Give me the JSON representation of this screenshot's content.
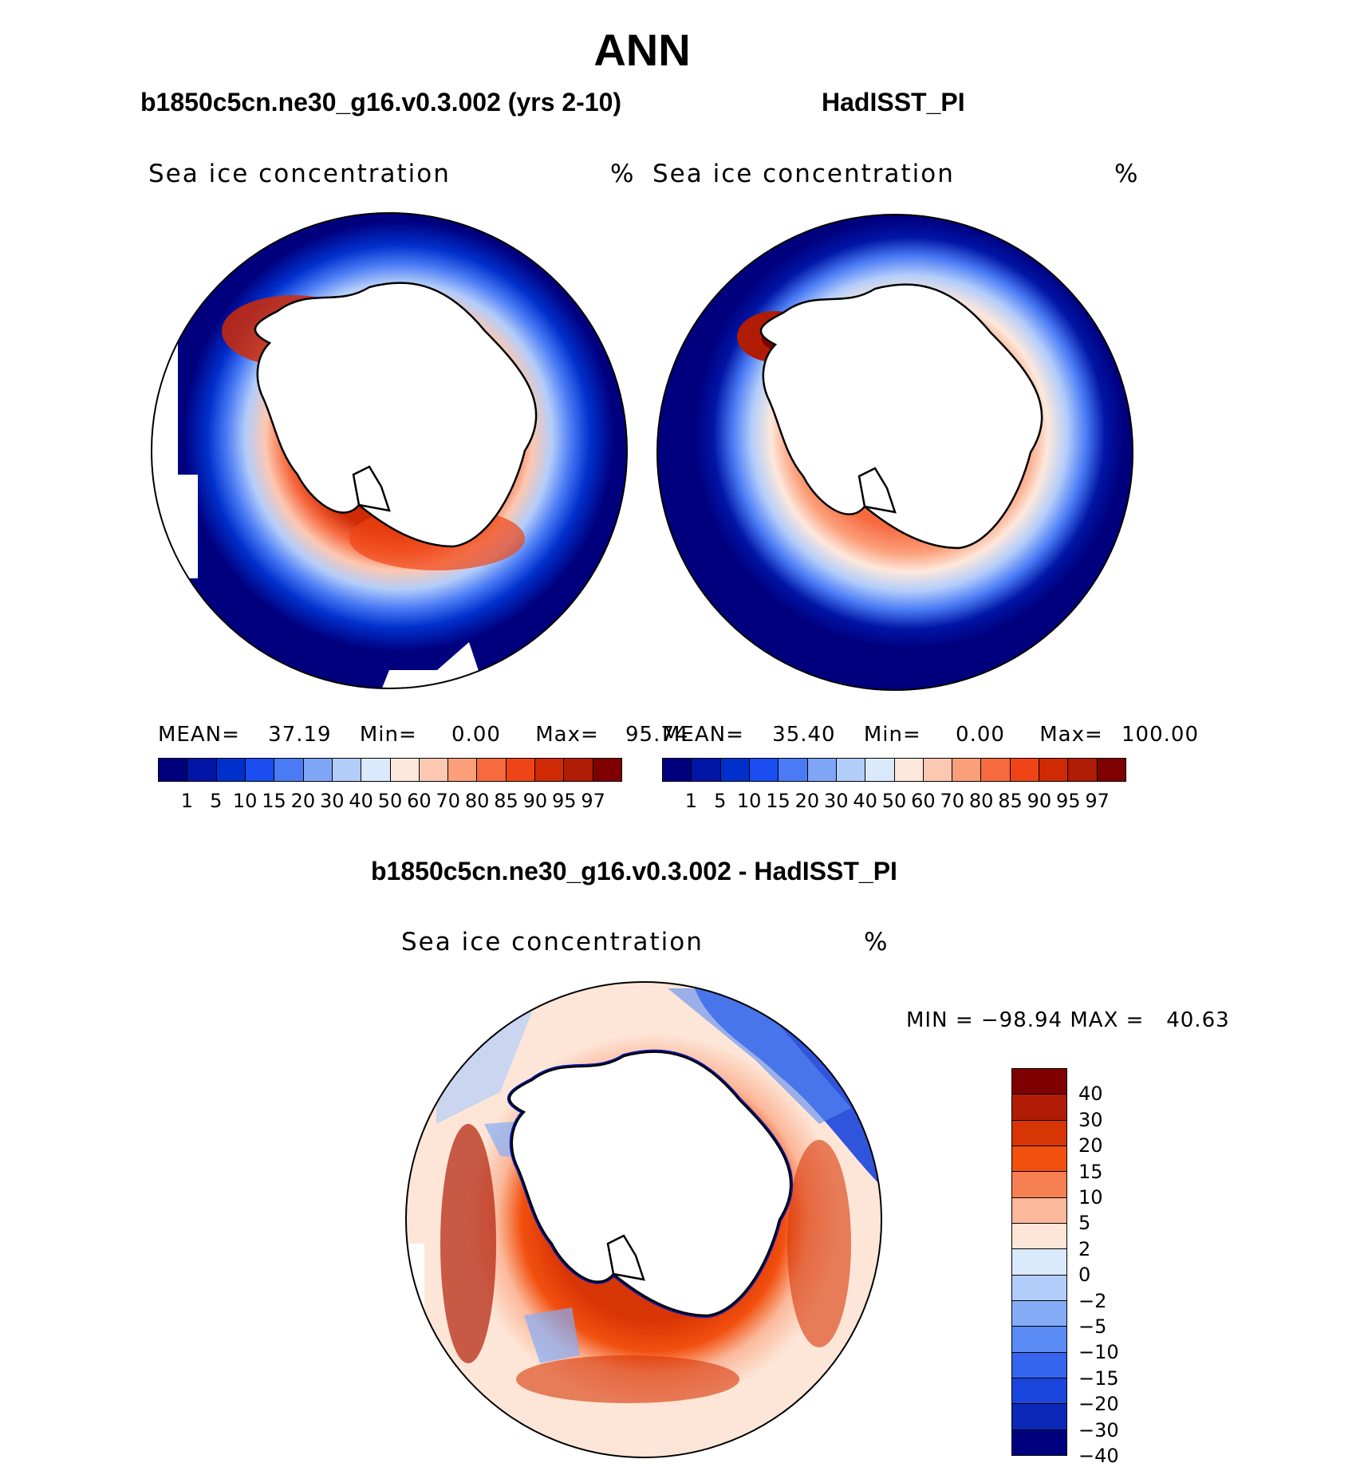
{
  "main_title": "ANN",
  "panels": [
    {
      "title": "b1850c5cn.ne30_g16.v0.3.002 (yrs 2-10)",
      "left_label": "Sea ice concentration",
      "right_label": "%",
      "mean_label": "MEAN=",
      "mean_value": "37.19",
      "min_label": "Min=",
      "min_value": "0.00",
      "max_label": "Max=",
      "max_value": "95.74"
    },
    {
      "title": "HadISST_PI",
      "left_label": "Sea ice concentration",
      "right_label": "%",
      "mean_label": "MEAN=",
      "mean_value": "35.40",
      "min_label": "Min=",
      "min_value": "0.00",
      "max_label": "Max=",
      "max_value": "100.00"
    }
  ],
  "diff_panel": {
    "title": "b1850c5cn.ne30_g16.v0.3.002 - HadISST_PI",
    "left_label": "Sea ice concentration",
    "right_label": "%",
    "minmax_text": "MIN = −98.94 MAX =   40.63"
  },
  "colorbar_top": {
    "colors": [
      "#00007f",
      "#0015a5",
      "#0030cc",
      "#1a4df0",
      "#4a7bf5",
      "#7fa5f7",
      "#b3cdfa",
      "#dbe9fc",
      "#fde8dc",
      "#fcc8b2",
      "#fb9f7a",
      "#f76a40",
      "#ef4516",
      "#d02a05",
      "#b01c05",
      "#7f0000"
    ],
    "ticks": [
      "1",
      "5",
      "10",
      "15",
      "20",
      "30",
      "40",
      "50",
      "60",
      "70",
      "80",
      "85",
      "90",
      "95",
      "97"
    ]
  },
  "colorbar_diff": {
    "colors": [
      "#7f0000",
      "#b01c05",
      "#d83505",
      "#f2500f",
      "#f78052",
      "#fbb89a",
      "#fde6d8",
      "#dbe9fc",
      "#b3cdfa",
      "#85acf7",
      "#5a8af3",
      "#3565ee",
      "#1a45dd",
      "#0a28b8",
      "#00007f"
    ],
    "ticks": [
      "40",
      "30",
      "20",
      "15",
      "10",
      "5",
      "2",
      "0",
      "−2",
      "−5",
      "−10",
      "−15",
      "−20",
      "−30",
      "−40"
    ]
  }
}
